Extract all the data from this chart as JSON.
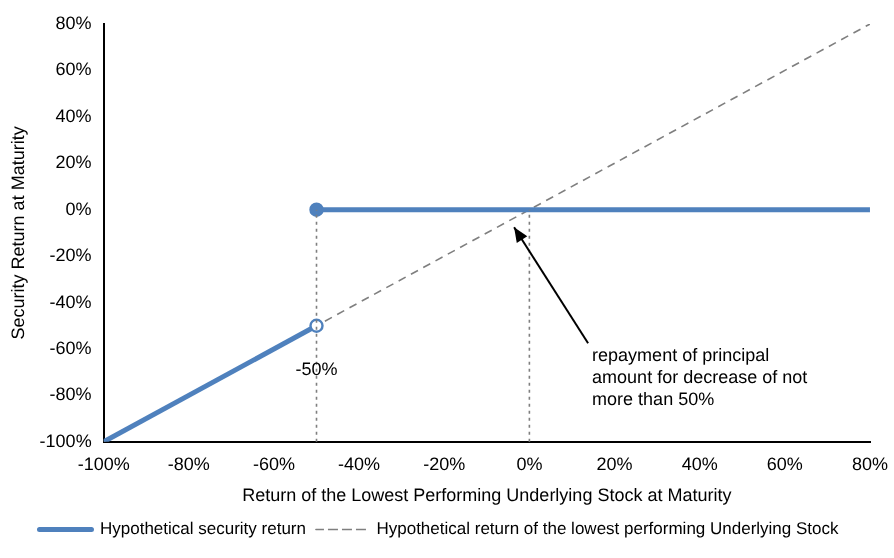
{
  "chart_data": {
    "type": "line",
    "xlabel": "Return of the Lowest Performing Underlying Stock at Maturity",
    "ylabel": "Security Return at Maturity",
    "xlim": [
      -100,
      80
    ],
    "xticks": [
      {
        "value": -100,
        "label": "-100%"
      },
      {
        "value": -80,
        "label": "-80%"
      },
      {
        "value": -60,
        "label": "-60%"
      },
      {
        "value": -40,
        "label": "-40%"
      },
      {
        "value": -20,
        "label": "-20%"
      },
      {
        "value": 0,
        "label": "0%"
      },
      {
        "value": 20,
        "label": "20%"
      },
      {
        "value": 40,
        "label": "40%"
      },
      {
        "value": 60,
        "label": "60%"
      },
      {
        "value": 80,
        "label": "80%"
      }
    ],
    "ylim": [
      -100,
      80
    ],
    "yticks": [
      {
        "value": -100,
        "label": "-100%"
      },
      {
        "value": -80,
        "label": "-80%"
      },
      {
        "value": -60,
        "label": "-60%"
      },
      {
        "value": -40,
        "label": "-40%"
      },
      {
        "value": -20,
        "label": "-20%"
      },
      {
        "value": 0,
        "label": "0%"
      },
      {
        "value": 20,
        "label": "20%"
      },
      {
        "value": 40,
        "label": "40%"
      },
      {
        "value": 60,
        "label": "60%"
      },
      {
        "value": 80,
        "label": "80%"
      }
    ],
    "series": [
      {
        "name": "Hypothetical security return",
        "color": "#4f81bd",
        "x": [
          -100,
          -50
        ],
        "values": [
          -100,
          -50
        ],
        "marker": "none",
        "line_style": "solid"
      },
      {
        "type": "line",
        "color": "#4f81bd",
        "x": [
          -50,
          80
        ],
        "values": [
          0,
          0
        ],
        "marker": "none",
        "line_style": "solid"
      },
      {
        "name": "Hypothetical return of the lowest performing Underlying Stock",
        "color": "#7f7f7f",
        "x": [
          -100,
          80
        ],
        "values": [
          -100,
          80
        ],
        "marker": "none",
        "line_style": "dashed"
      },
      {
        "type": "scatter",
        "color": "#4f81bd",
        "colors": [
          "#ffffff",
          "#4f81bd"
        ],
        "x": [
          -50,
          -50
        ],
        "values": [
          -50,
          0
        ],
        "marker": "circle"
      }
    ],
    "ref_lines": [
      {
        "axis": "x",
        "value": -50,
        "color": "#7f7f7f",
        "line_style": "dotted"
      },
      {
        "axis": "x",
        "value": 0,
        "color": "#7f7f7f",
        "line_style": "dotted"
      }
    ],
    "annotations": [
      {
        "text": "-50%",
        "x": -50,
        "y": -65
      },
      {
        "text": "repayment of principal amount for decrease of not more than 50%",
        "x": -5,
        "y": -5
      }
    ],
    "grid": false,
    "legend": "bottom"
  }
}
